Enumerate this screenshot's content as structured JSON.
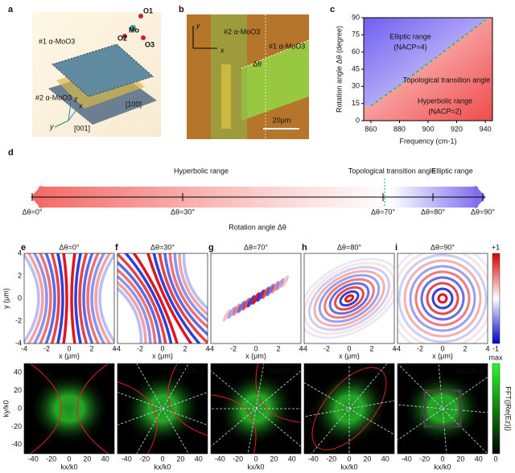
{
  "panel_labels": [
    "a",
    "b",
    "c",
    "d",
    "e",
    "f",
    "g",
    "h",
    "i"
  ],
  "panel_a": {
    "layer1": "#1 α-MoO3",
    "layer2": "#2 α-MoO3",
    "dir100": "[100]",
    "dir001": "[001]",
    "axes": [
      "x",
      "y",
      "z"
    ],
    "atoms": [
      "Mo",
      "O1",
      "O2",
      "O3"
    ]
  },
  "panel_b": {
    "layer2": "#2 α-MoO3",
    "layer1": "#1 α-MoO3",
    "angle": "Δθ",
    "scale": "20μm",
    "axes": [
      "x",
      "y"
    ]
  },
  "chart_data": {
    "type": "line",
    "x_label": "Frequency (cm-1)",
    "y_label": "Rotation angle Δθ (degree)",
    "x": [
      860,
      880,
      900,
      920,
      940
    ],
    "series": [
      {
        "name": "Topological transition angle",
        "color": "#2fb86a",
        "values": [
          13,
          31,
          50,
          69,
          88
        ]
      }
    ],
    "xlim": [
      855,
      945
    ],
    "ylim": [
      0,
      90
    ],
    "xticks": [
      860,
      880,
      900,
      920,
      940
    ],
    "yticks": [
      0,
      15,
      30,
      45,
      60,
      75,
      90
    ],
    "annotations": [
      "Elliptic range",
      "(NACP=4)",
      "Hyperbolic range",
      "(NACP=2)"
    ]
  },
  "panel_d": {
    "hyperbolic": "Hyperbolic range",
    "transition": "Topological transition angle",
    "elliptic": "Elliptic range",
    "ticks": [
      "Δθ=0°",
      "Δθ=30°",
      "Δθ=70°",
      "Δθ=80°",
      "Δθ=90°"
    ],
    "axis_label": "Rotation angle Δθ"
  },
  "field_maps": {
    "titles": [
      "Δθ=0°",
      "Δθ=30°",
      "Δθ=70°",
      "Δθ=80°",
      "Δθ=90°"
    ],
    "ticks": [
      -4,
      -2,
      0,
      2,
      4
    ],
    "x_label": "x (μm)",
    "y_label": "y (μm)",
    "colorbar": [
      "+1",
      "-1"
    ]
  },
  "fft_maps": {
    "ticks": [
      -40,
      -20,
      0,
      20,
      40
    ],
    "x_label": "kx/k0",
    "y_label": "ky/k0",
    "nacp": [
      "NACP=2",
      "NACP=2",
      "NACP=4",
      "NACP=4"
    ],
    "colorbar": [
      "max",
      "0"
    ],
    "colorbar_label": "FFT(|Re(Ez)|)"
  }
}
